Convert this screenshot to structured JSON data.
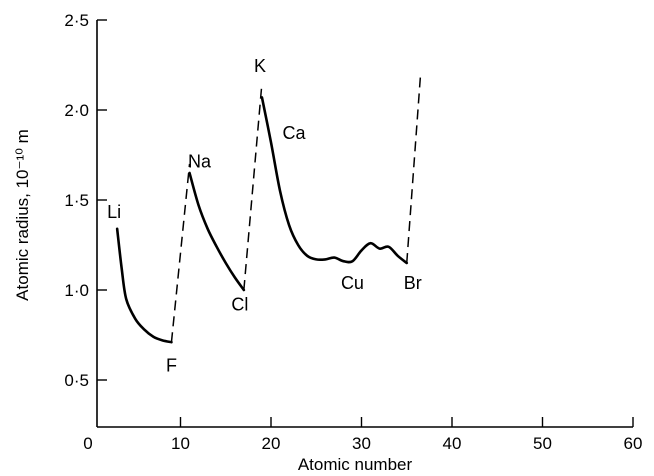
{
  "chart_data": {
    "type": "line",
    "xlabel": "Atomic number",
    "ylabel": "Atomic radius, 10⁻¹⁰ m",
    "xlim": [
      0,
      60
    ],
    "ylim": [
      0.3,
      2.5
    ],
    "x_ticks": [
      0,
      10,
      20,
      30,
      40,
      50,
      60
    ],
    "x_tick_labels": [
      "0",
      "10",
      "20",
      "30",
      "40",
      "50",
      "60"
    ],
    "y_ticks": [
      0.5,
      1.0,
      1.5,
      2.0,
      2.5
    ],
    "y_tick_labels": [
      "0·5",
      "1·0",
      "1·5",
      "2·0",
      "2·5"
    ],
    "series": [
      {
        "style": "solid",
        "x": [
          3,
          3.5,
          4,
          5,
          6,
          7,
          8,
          9
        ],
        "y": [
          1.34,
          1.12,
          0.95,
          0.84,
          0.78,
          0.74,
          0.72,
          0.71
        ]
      },
      {
        "style": "solid",
        "x": [
          11,
          12,
          13,
          14,
          15,
          16,
          17
        ],
        "y": [
          1.65,
          1.47,
          1.34,
          1.24,
          1.15,
          1.07,
          1.0
        ]
      },
      {
        "style": "solid",
        "x": [
          19,
          20,
          21,
          22,
          23,
          24,
          25,
          26,
          27,
          28,
          29,
          30,
          31,
          32,
          33,
          34,
          35
        ],
        "y": [
          2.07,
          1.82,
          1.55,
          1.36,
          1.25,
          1.19,
          1.17,
          1.17,
          1.18,
          1.16,
          1.16,
          1.22,
          1.26,
          1.23,
          1.24,
          1.19,
          1.15
        ]
      },
      {
        "style": "dashed",
        "x": [
          9,
          11
        ],
        "y": [
          0.71,
          1.7
        ]
      },
      {
        "style": "dashed",
        "x": [
          17,
          19
        ],
        "y": [
          1.0,
          2.15
        ]
      },
      {
        "style": "dashed",
        "x": [
          35,
          36.5
        ],
        "y": [
          1.15,
          2.18
        ]
      }
    ],
    "annotations": [
      {
        "text": "Li",
        "x": 3,
        "y": 1.4
      },
      {
        "text": "F",
        "x": 9,
        "y": 0.58
      },
      {
        "text": "Na",
        "x": 11,
        "y": 1.68
      },
      {
        "text": "Cl",
        "x": 17,
        "y": 0.92
      },
      {
        "text": "K",
        "x": 19,
        "y": 2.21
      },
      {
        "text": "Ca",
        "x": 21,
        "y": 1.84
      },
      {
        "text": "Cu",
        "x": 29,
        "y": 1.04
      },
      {
        "text": "Br",
        "x": 35,
        "y": 1.04
      }
    ]
  }
}
